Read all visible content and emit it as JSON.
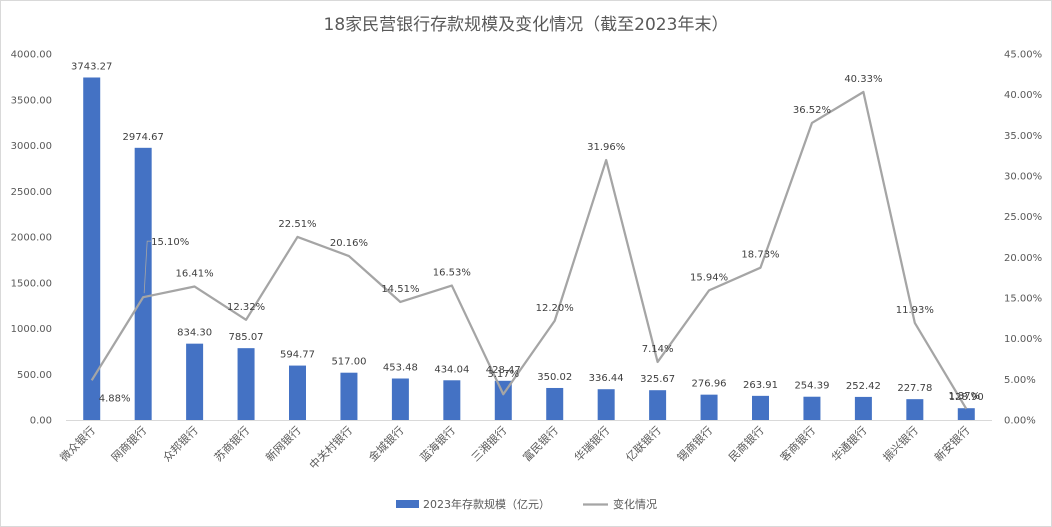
{
  "chart_data": {
    "type": "bar",
    "title": "18家民营银行存款规模及变化情况（截至2023年末）",
    "categories": [
      "微众银行",
      "网商银行",
      "众邦银行",
      "苏商银行",
      "新网银行",
      "中关村银行",
      "金城银行",
      "蓝海银行",
      "三湘银行",
      "富民银行",
      "华瑞银行",
      "亿联银行",
      "锡商银行",
      "民商银行",
      "客商银行",
      "华通银行",
      "振兴银行",
      "新安银行"
    ],
    "series": [
      {
        "name": "2023年存款规模（亿元）",
        "type": "bar",
        "axis": "left",
        "color": "#4472c4",
        "values": [
          3743.27,
          2974.67,
          834.3,
          785.07,
          594.77,
          517.0,
          453.48,
          434.04,
          428.47,
          350.02,
          336.44,
          325.67,
          276.96,
          263.91,
          254.39,
          252.42,
          227.78,
          128.9
        ],
        "labels": [
          "3743.27",
          "2974.67",
          "834.30",
          "785.07",
          "594.77",
          "517.00",
          "453.48",
          "434.04",
          "428.47",
          "350.02",
          "336.44",
          "325.67",
          "276.96",
          "263.91",
          "254.39",
          "252.42",
          "227.78",
          "128.90"
        ]
      },
      {
        "name": "变化情况",
        "type": "line",
        "axis": "right",
        "color": "#a5a5a5",
        "values": [
          4.88,
          15.1,
          16.41,
          12.32,
          22.51,
          20.16,
          14.51,
          16.53,
          3.17,
          12.2,
          31.96,
          7.14,
          15.94,
          18.73,
          36.52,
          40.33,
          11.93,
          1.37
        ],
        "labels": [
          "4.88%",
          "15.10%",
          "16.41%",
          "12.32%",
          "22.51%",
          "20.16%",
          "14.51%",
          "16.53%",
          "3.17%",
          "12.20%",
          "31.96%",
          "7.14%",
          "15.94%",
          "18.73%",
          "36.52%",
          "40.33%",
          "11.93%",
          "1.37%"
        ]
      }
    ],
    "y_left": {
      "min": 0,
      "max": 4000,
      "ticks": [
        "0.00",
        "500.00",
        "1000.00",
        "1500.00",
        "2000.00",
        "2500.00",
        "3000.00",
        "3500.00",
        "4000.00"
      ]
    },
    "y_right": {
      "min": 0,
      "max": 45,
      "ticks": [
        "0.00%",
        "5.00%",
        "10.00%",
        "15.00%",
        "20.00%",
        "25.00%",
        "30.00%",
        "35.00%",
        "40.00%",
        "45.00%"
      ]
    },
    "grid": false,
    "legend_position": "bottom"
  }
}
